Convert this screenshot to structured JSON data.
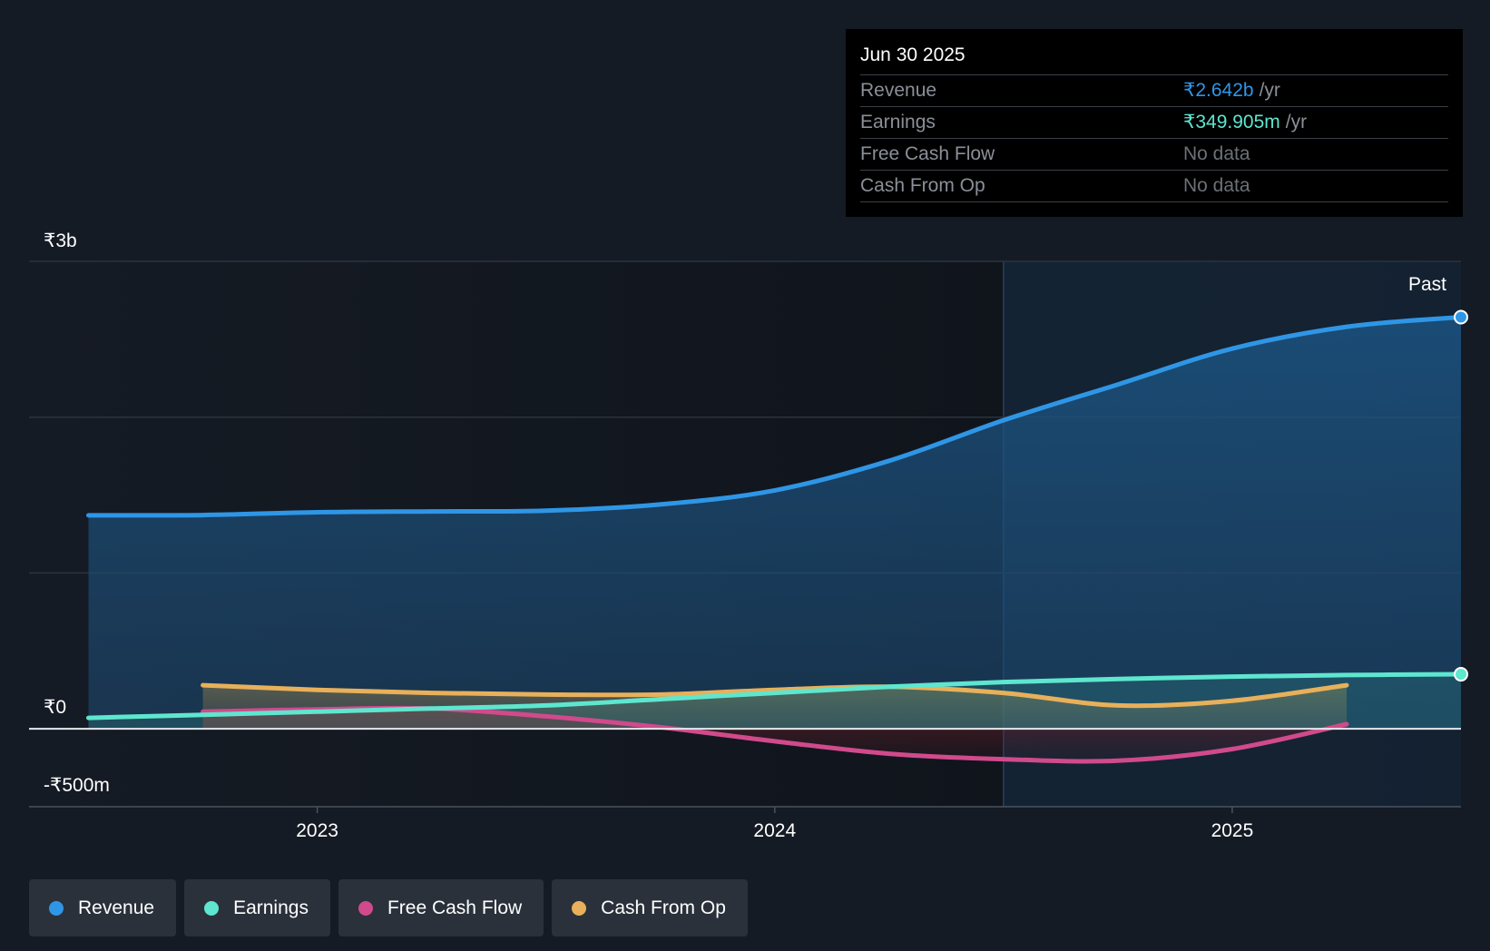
{
  "tooltip": {
    "date": "Jun 30 2025",
    "rows": [
      {
        "label": "Revenue",
        "value": "₹2.642b",
        "unit": "/yr"
      },
      {
        "label": "Earnings",
        "value": "₹349.905m",
        "unit": "/yr"
      },
      {
        "label": "Free Cash Flow",
        "value": "No data"
      },
      {
        "label": "Cash From Op",
        "value": "No data"
      }
    ]
  },
  "legend": [
    {
      "label": "Revenue",
      "color": "#2f96e6"
    },
    {
      "label": "Earnings",
      "color": "#5ee6cf"
    },
    {
      "label": "Free Cash Flow",
      "color": "#d04a8c"
    },
    {
      "label": "Cash From Op",
      "color": "#e8b05a"
    }
  ],
  "chart_data": {
    "type": "line",
    "title": "",
    "past_label": "Past",
    "y_labels": [
      "₹3b",
      "₹0",
      "-₹500m"
    ],
    "x_ticks": [
      {
        "label": "2023",
        "x": 2023.0
      },
      {
        "label": "2024",
        "x": 2024.0
      },
      {
        "label": "2025",
        "x": 2025.0
      }
    ],
    "xlim": [
      2022.37,
      2025.5
    ],
    "ylim": [
      -500,
      3000
    ],
    "past_start": 2024.5,
    "gridlines": [
      3000,
      2000,
      1000,
      0
    ],
    "series": [
      {
        "name": "Revenue",
        "color": "#2f96e6",
        "points": [
          [
            2022.5,
            1370
          ],
          [
            2022.75,
            1372
          ],
          [
            2023.0,
            1390
          ],
          [
            2023.25,
            1395
          ],
          [
            2023.5,
            1400
          ],
          [
            2023.75,
            1440
          ],
          [
            2024.0,
            1530
          ],
          [
            2024.25,
            1720
          ],
          [
            2024.5,
            1980
          ],
          [
            2024.75,
            2210
          ],
          [
            2025.0,
            2440
          ],
          [
            2025.25,
            2580
          ],
          [
            2025.5,
            2642
          ]
        ]
      },
      {
        "name": "Earnings",
        "color": "#5ee6cf",
        "points": [
          [
            2022.5,
            70
          ],
          [
            2022.75,
            90
          ],
          [
            2023.0,
            110
          ],
          [
            2023.25,
            130
          ],
          [
            2023.5,
            150
          ],
          [
            2023.75,
            190
          ],
          [
            2024.0,
            230
          ],
          [
            2024.25,
            270
          ],
          [
            2024.5,
            300
          ],
          [
            2024.75,
            320
          ],
          [
            2025.0,
            335
          ],
          [
            2025.25,
            345
          ],
          [
            2025.5,
            350
          ]
        ]
      },
      {
        "name": "Free Cash Flow",
        "color": "#d04a8c",
        "points": [
          [
            2022.75,
            110
          ],
          [
            2023.0,
            125
          ],
          [
            2023.25,
            130
          ],
          [
            2023.5,
            80
          ],
          [
            2023.75,
            10
          ],
          [
            2024.0,
            -80
          ],
          [
            2024.25,
            -160
          ],
          [
            2024.5,
            -195
          ],
          [
            2024.75,
            -205
          ],
          [
            2025.0,
            -130
          ],
          [
            2025.25,
            30
          ]
        ]
      },
      {
        "name": "Cash From Op",
        "color": "#e8b05a",
        "points": [
          [
            2022.75,
            280
          ],
          [
            2023.0,
            250
          ],
          [
            2023.25,
            230
          ],
          [
            2023.5,
            220
          ],
          [
            2023.75,
            220
          ],
          [
            2024.0,
            250
          ],
          [
            2024.25,
            270
          ],
          [
            2024.5,
            230
          ],
          [
            2024.75,
            150
          ],
          [
            2025.0,
            180
          ],
          [
            2025.25,
            280
          ]
        ]
      }
    ]
  }
}
